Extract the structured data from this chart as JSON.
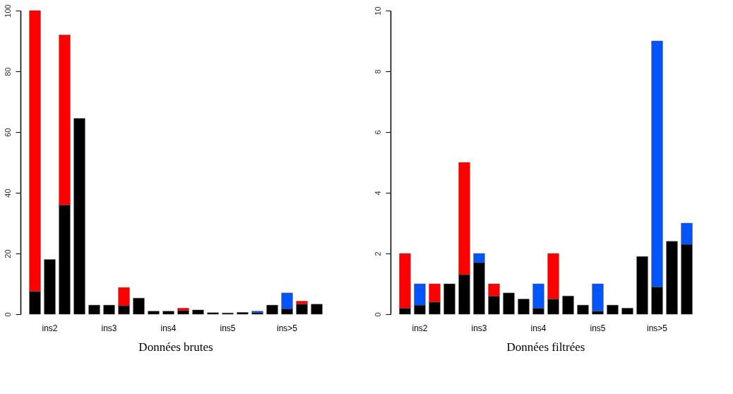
{
  "chart_data": [
    {
      "type": "bar",
      "stacked": true,
      "title": "Données brutes",
      "categories": [
        null,
        "ins2",
        null,
        null,
        null,
        "ins3",
        null,
        null,
        null,
        "ins4",
        null,
        null,
        null,
        "ins5",
        null,
        null,
        null,
        "ins>5",
        null,
        null
      ],
      "series": [
        {
          "color": "#000000",
          "values": [
            7.5,
            18,
            36,
            64.5,
            3,
            3,
            2.8,
            5.3,
            1,
            1,
            1.2,
            1.4,
            0.5,
            0.4,
            0.6,
            0.5,
            3,
            1.8,
            3.3,
            3.3
          ]
        },
        {
          "color": "#ff0000",
          "values": [
            92.5,
            null,
            56,
            null,
            null,
            null,
            6,
            null,
            null,
            null,
            0.8,
            null,
            null,
            null,
            null,
            null,
            null,
            null,
            1,
            null
          ]
        },
        {
          "color": "#0055ff",
          "values": [
            null,
            null,
            null,
            null,
            null,
            null,
            null,
            null,
            null,
            null,
            null,
            null,
            null,
            null,
            null,
            0.5,
            null,
            5.2,
            null,
            null
          ]
        }
      ],
      "ylim": [
        0,
        100
      ],
      "yticks": [
        0,
        20,
        40,
        60,
        80,
        100
      ],
      "grid": false
    },
    {
      "type": "bar",
      "stacked": true,
      "title": "Données filtrées",
      "categories": [
        null,
        "ins2",
        null,
        null,
        null,
        "ins3",
        null,
        null,
        null,
        "ins4",
        null,
        null,
        null,
        "ins5",
        null,
        null,
        null,
        "ins>5",
        null,
        null
      ],
      "series": [
        {
          "color": "#000000",
          "values": [
            0.2,
            0.3,
            0.4,
            1,
            1.3,
            1.7,
            0.6,
            0.7,
            0.5,
            0.2,
            0.5,
            0.6,
            0.3,
            0.1,
            0.3,
            0.2,
            1.9,
            0.9,
            2.4,
            2.3
          ]
        },
        {
          "color": "#ff0000",
          "values": [
            1.8,
            null,
            0.6,
            null,
            3.7,
            null,
            0.4,
            null,
            null,
            null,
            1.5,
            null,
            null,
            null,
            null,
            null,
            null,
            null,
            null,
            null
          ]
        },
        {
          "color": "#0055ff",
          "values": [
            null,
            0.7,
            null,
            null,
            null,
            0.3,
            null,
            null,
            null,
            0.8,
            null,
            null,
            null,
            0.9,
            null,
            null,
            null,
            8.1,
            null,
            0.7
          ]
        }
      ],
      "ylim": [
        0,
        10
      ],
      "yticks": [
        0,
        2,
        4,
        6,
        8,
        10
      ],
      "grid": false
    }
  ]
}
